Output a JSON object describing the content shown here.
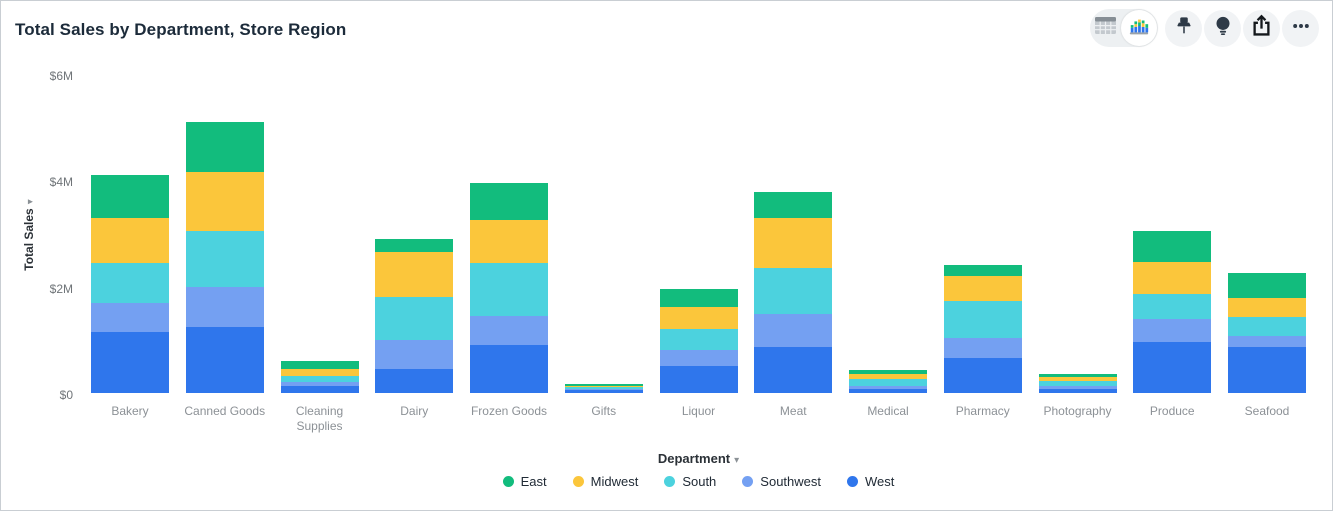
{
  "card": {
    "title": "Total Sales by Department, Store Region"
  },
  "icons": {
    "caret_down": "▾"
  },
  "toolbar": {
    "view_toggle": {
      "options": [
        "table-view",
        "chart-view"
      ],
      "selected": "chart-view"
    },
    "buttons": [
      "pin",
      "lightbulb",
      "export",
      "more-options"
    ]
  },
  "chart_data": {
    "type": "bar",
    "stacked": true,
    "title": "Total Sales by Department, Store Region",
    "xlabel": "Department",
    "ylabel": "Total Sales",
    "value_unit": "USD millions",
    "ylim": [
      0,
      6000000
    ],
    "y_ticks": [
      {
        "label": "$0",
        "value": 0
      },
      {
        "label": "$2M",
        "value": 2
      },
      {
        "label": "$4M",
        "value": 4
      },
      {
        "label": "$6M",
        "value": 6
      }
    ],
    "grid": false,
    "legend_position": "bottom",
    "categories": [
      "Bakery",
      "Canned Goods",
      "Cleaning Supplies",
      "Dairy",
      "Frozen Goods",
      "Gifts",
      "Liquor",
      "Meat",
      "Medical",
      "Pharmacy",
      "Photography",
      "Produce",
      "Seafood"
    ],
    "stack_order_bottom_to_top": [
      "West",
      "Southwest",
      "South",
      "Midwest",
      "East"
    ],
    "series": [
      {
        "name": "East",
        "color": "#12BC7D",
        "values": [
          0.8,
          0.95,
          0.15,
          0.25,
          0.7,
          0.03,
          0.33,
          0.49,
          0.07,
          0.21,
          0.05,
          0.58,
          0.47
        ]
      },
      {
        "name": "Midwest",
        "color": "#FBC63B",
        "values": [
          0.85,
          1.1,
          0.13,
          0.85,
          0.8,
          0.03,
          0.42,
          0.94,
          0.1,
          0.47,
          0.09,
          0.6,
          0.36
        ]
      },
      {
        "name": "South",
        "color": "#4CD2DE",
        "values": [
          0.75,
          1.05,
          0.11,
          0.8,
          1.0,
          0.03,
          0.4,
          0.87,
          0.12,
          0.7,
          0.09,
          0.47,
          0.36
        ]
      },
      {
        "name": "Southwest",
        "color": "#74A0F2",
        "values": [
          0.55,
          0.75,
          0.08,
          0.55,
          0.55,
          0.03,
          0.3,
          0.62,
          0.06,
          0.37,
          0.06,
          0.43,
          0.21
        ]
      },
      {
        "name": "West",
        "color": "#2F76EC",
        "values": [
          1.15,
          1.25,
          0.13,
          0.45,
          0.9,
          0.05,
          0.5,
          0.86,
          0.08,
          0.66,
          0.07,
          0.96,
          0.86
        ]
      }
    ],
    "totals": [
      4.1,
      5.1,
      0.6,
      2.9,
      3.95,
      0.17,
      1.95,
      3.78,
      0.43,
      2.41,
      0.36,
      3.04,
      2.26
    ]
  }
}
